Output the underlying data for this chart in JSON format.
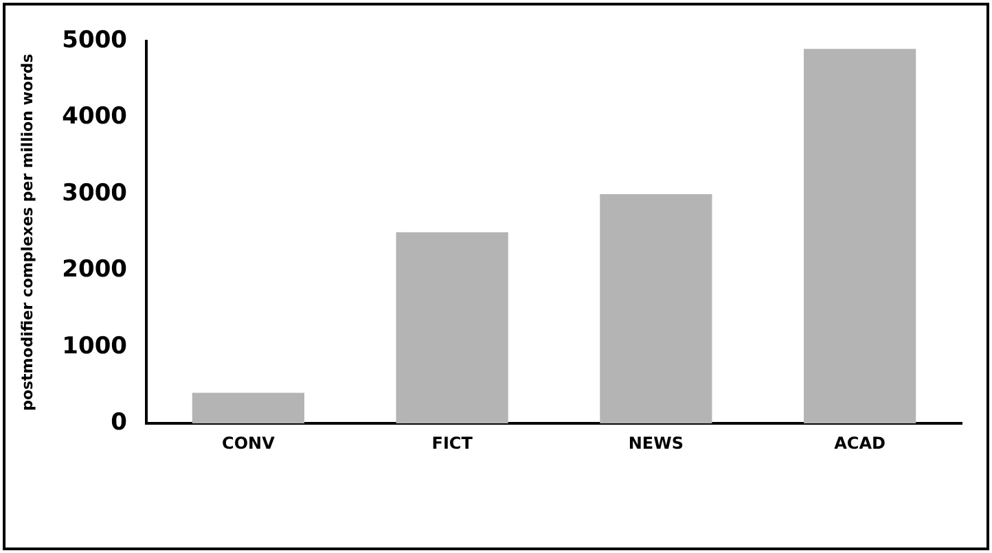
{
  "chart_data": {
    "type": "bar",
    "ylabel": "postmodifier complexes per million words",
    "categories": [
      "CONV",
      "FICT",
      "NEWS",
      "ACAD"
    ],
    "values": [
      400,
      2500,
      3000,
      4900
    ],
    "color": "#b4b4b4",
    "ylim": [
      0,
      5000
    ],
    "yticks": [
      0,
      1000,
      2000,
      3000,
      4000,
      5000
    ],
    "grid": false,
    "legend": false
  }
}
